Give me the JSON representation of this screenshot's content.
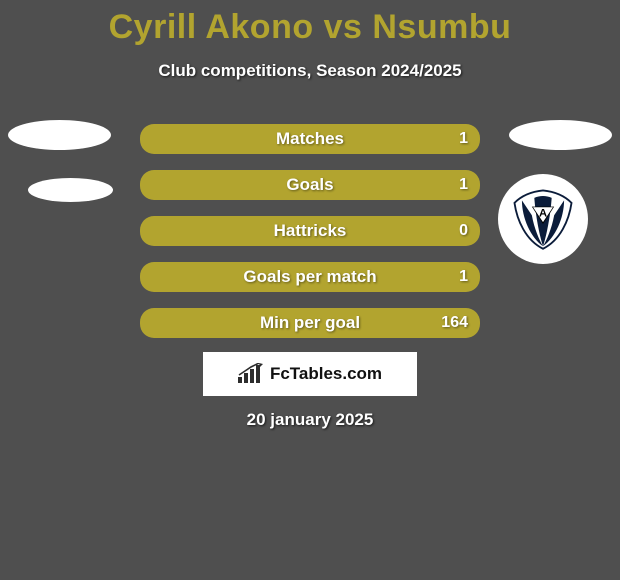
{
  "title": {
    "player1": "Cyrill Akono",
    "vs": "vs",
    "player2": "Nsumbu",
    "color": "#b2a42f"
  },
  "subtitle": "Club competitions, Season 2024/2025",
  "background_color": "#4f4f4f",
  "stats": {
    "row_bg": "#b2a42f",
    "label_color": "#ffffff",
    "rows": [
      {
        "label": "Matches",
        "left": "",
        "right": "1"
      },
      {
        "label": "Goals",
        "left": "",
        "right": "1"
      },
      {
        "label": "Hattricks",
        "left": "",
        "right": "0"
      },
      {
        "label": "Goals per match",
        "left": "",
        "right": "1"
      },
      {
        "label": "Min per goal",
        "left": "",
        "right": "164"
      }
    ]
  },
  "avatars": {
    "oval_color": "#ffffff",
    "club_badge": {
      "stripes": "#0b1c3a",
      "pennant_bg": "#ffffff",
      "letter": "A",
      "letter_color": "#000000"
    }
  },
  "brand": {
    "text": "FcTables.com",
    "bg": "#ffffff",
    "text_color": "#111111",
    "icon_color": "#2d2d2d"
  },
  "date": "20 january 2025"
}
